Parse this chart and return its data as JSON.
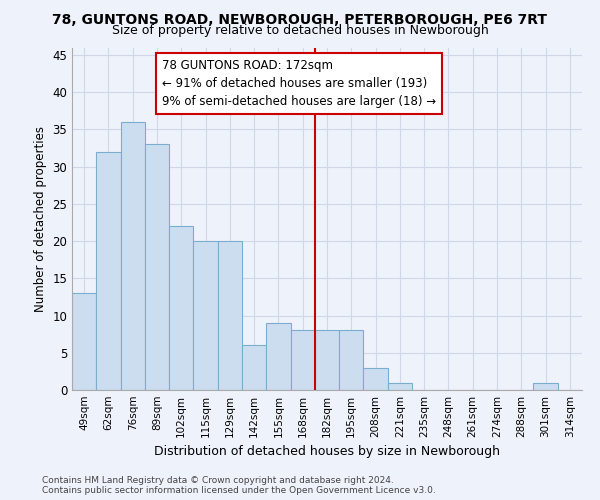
{
  "title1": "78, GUNTONS ROAD, NEWBOROUGH, PETERBOROUGH, PE6 7RT",
  "title2": "Size of property relative to detached houses in Newborough",
  "xlabel": "Distribution of detached houses by size in Newborough",
  "ylabel": "Number of detached properties",
  "categories": [
    "49sqm",
    "62sqm",
    "76sqm",
    "89sqm",
    "102sqm",
    "115sqm",
    "129sqm",
    "142sqm",
    "155sqm",
    "168sqm",
    "182sqm",
    "195sqm",
    "208sqm",
    "221sqm",
    "235sqm",
    "248sqm",
    "261sqm",
    "274sqm",
    "288sqm",
    "301sqm",
    "314sqm"
  ],
  "values": [
    13,
    32,
    36,
    33,
    22,
    20,
    20,
    6,
    9,
    8,
    8,
    8,
    3,
    1,
    0,
    0,
    0,
    0,
    0,
    1,
    0
  ],
  "bar_color": "#ccddf0",
  "bar_edge_color": "#7aaed0",
  "background_color": "#eef2fb",
  "grid_color": "#d0d8e8",
  "vline_x": 9.5,
  "vline_color": "#cc0000",
  "annotation_text": "78 GUNTONS ROAD: 172sqm\n← 91% of detached houses are smaller (193)\n9% of semi-detached houses are larger (18) →",
  "footer": "Contains HM Land Registry data © Crown copyright and database right 2024.\nContains public sector information licensed under the Open Government Licence v3.0.",
  "ylim": [
    0,
    46
  ],
  "yticks": [
    0,
    5,
    10,
    15,
    20,
    25,
    30,
    35,
    40,
    45
  ]
}
